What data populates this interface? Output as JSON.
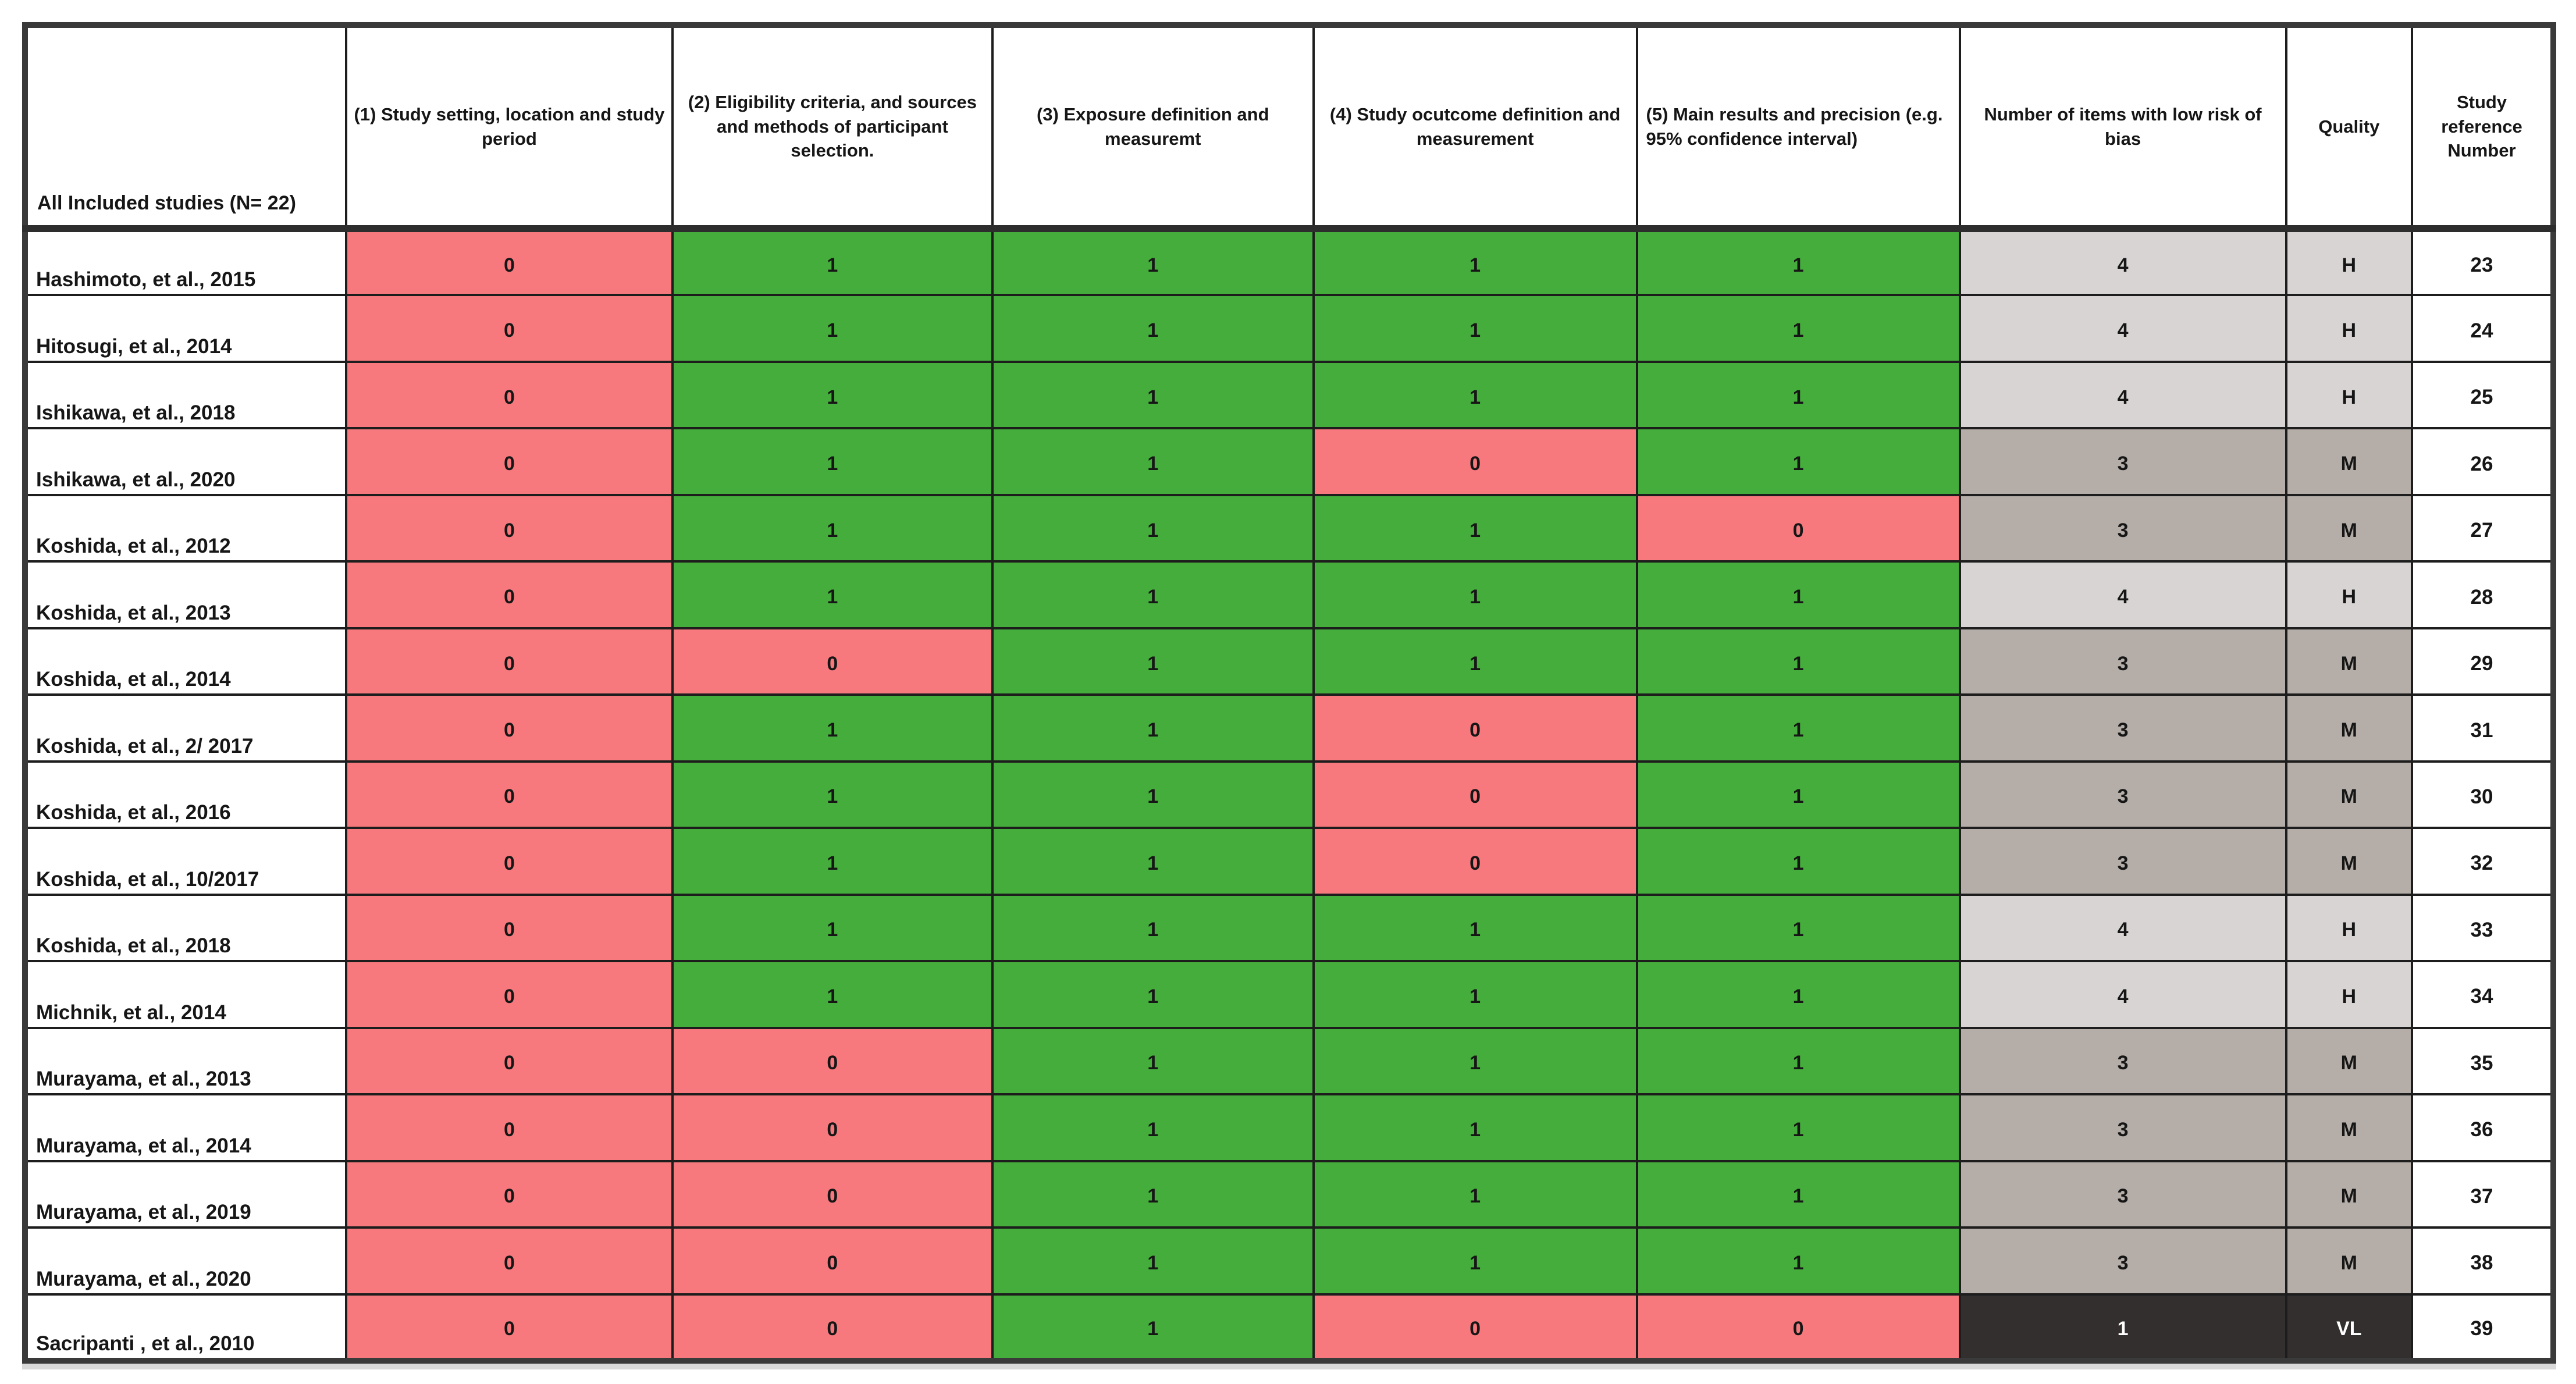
{
  "chart_data": {
    "type": "table",
    "corner_header": "All Included studies (N= 22)",
    "criteria_headers": [
      "(1) Study setting, location and study period",
      "(2) Eligibility criteria, and sources and methods of participant selection.",
      "(3) Exposure definition and measuremt",
      "(4) Study ocutcome definition and measurement",
      "(5) Main results and precision (e.g. 95% confidence interval)"
    ],
    "summary_headers": [
      "Number  of items with low risk of bias",
      "Quality",
      "Study reference Number"
    ],
    "rows": [
      {
        "study": "Hashimoto, et al., 2015",
        "scores": [
          0,
          1,
          1,
          1,
          1
        ],
        "items": 4,
        "quality": "H",
        "ref": 23
      },
      {
        "study": "Hitosugi, et al., 2014",
        "scores": [
          0,
          1,
          1,
          1,
          1
        ],
        "items": 4,
        "quality": "H",
        "ref": 24
      },
      {
        "study": "Ishikawa, et al., 2018",
        "scores": [
          0,
          1,
          1,
          1,
          1
        ],
        "items": 4,
        "quality": "H",
        "ref": 25
      },
      {
        "study": "Ishikawa, et al., 2020",
        "scores": [
          0,
          1,
          1,
          0,
          1
        ],
        "items": 3,
        "quality": "M",
        "ref": 26
      },
      {
        "study": "Koshida, et al., 2012",
        "scores": [
          0,
          1,
          1,
          1,
          0
        ],
        "items": 3,
        "quality": "M",
        "ref": 27
      },
      {
        "study": "Koshida, et al., 2013",
        "scores": [
          0,
          1,
          1,
          1,
          1
        ],
        "items": 4,
        "quality": "H",
        "ref": 28
      },
      {
        "study": "Koshida, et al., 2014",
        "scores": [
          0,
          0,
          1,
          1,
          1
        ],
        "items": 3,
        "quality": "M",
        "ref": 29
      },
      {
        "study": "Koshida, et al., 2/ 2017",
        "scores": [
          0,
          1,
          1,
          0,
          1
        ],
        "items": 3,
        "quality": "M",
        "ref": 31
      },
      {
        "study": "Koshida, et al., 2016",
        "scores": [
          0,
          1,
          1,
          0,
          1
        ],
        "items": 3,
        "quality": "M",
        "ref": 30
      },
      {
        "study": "Koshida, et al., 10/2017",
        "scores": [
          0,
          1,
          1,
          0,
          1
        ],
        "items": 3,
        "quality": "M",
        "ref": 32
      },
      {
        "study": "Koshida, et al., 2018",
        "scores": [
          0,
          1,
          1,
          1,
          1
        ],
        "items": 4,
        "quality": "H",
        "ref": 33
      },
      {
        "study": "Michnik, et al., 2014",
        "scores": [
          0,
          1,
          1,
          1,
          1
        ],
        "items": 4,
        "quality": "H",
        "ref": 34
      },
      {
        "study": "Murayama, et al., 2013",
        "scores": [
          0,
          0,
          1,
          1,
          1
        ],
        "items": 3,
        "quality": "M",
        "ref": 35
      },
      {
        "study": "Murayama, et al., 2014",
        "scores": [
          0,
          0,
          1,
          1,
          1
        ],
        "items": 3,
        "quality": "M",
        "ref": 36
      },
      {
        "study": "Murayama, et al., 2019",
        "scores": [
          0,
          0,
          1,
          1,
          1
        ],
        "items": 3,
        "quality": "M",
        "ref": 37
      },
      {
        "study": "Murayama, et al., 2020",
        "scores": [
          0,
          0,
          1,
          1,
          1
        ],
        "items": 3,
        "quality": "M",
        "ref": 38
      },
      {
        "study": "Sacripanti , et al., 2010",
        "scores": [
          0,
          0,
          1,
          0,
          0
        ],
        "items": 1,
        "quality": "VL",
        "ref": 39
      }
    ],
    "color_coding": {
      "score_0_high_risk": "#f7797d",
      "score_1_low_risk": "#44ad3b",
      "items_4_quality_H": "#d7d4d3",
      "items_3_quality_M": "#b4ada8",
      "items_1_quality_VL": "#332f2f"
    },
    "tone_map": {
      "4": "light",
      "3": "medium",
      "1": "dark",
      "H": "light",
      "M": "medium",
      "VL": "dark"
    },
    "layout": {
      "grid": "on",
      "score_cells": "0 = red fill, 1 = green fill",
      "dark_cells_text": "#ffffff"
    }
  }
}
